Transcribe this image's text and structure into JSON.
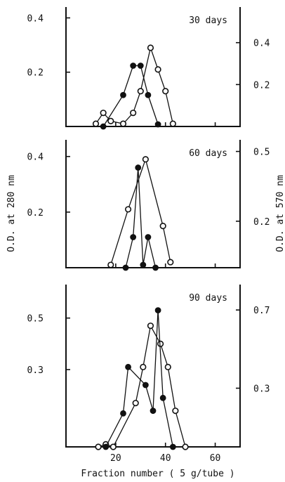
{
  "figure": {
    "left_axis_label": "O.D. at 280 nm",
    "right_axis_label": "O.D. at 570 nm",
    "x_axis_label": "Fraction number ( 5 g/tube )"
  },
  "chart_data": [
    {
      "type": "line",
      "panel_label": "30 days",
      "xlim": [
        0,
        70
      ],
      "left_axis": {
        "label": "O.D. at 280 nm",
        "ylim": [
          0,
          0.44
        ],
        "ticks": [
          0.2,
          0.4
        ]
      },
      "right_axis": {
        "label": "O.D. at 570 nm",
        "ylim": [
          0,
          0.57
        ],
        "ticks": [
          0.2,
          0.4
        ]
      },
      "series": [
        {
          "marker": "open",
          "axis": "left",
          "x": [
            12,
            15,
            18,
            23,
            27,
            30,
            34,
            37,
            40,
            43
          ],
          "y": [
            0.01,
            0.05,
            0.02,
            0.01,
            0.05,
            0.13,
            0.29,
            0.21,
            0.13,
            0.01
          ]
        },
        {
          "marker": "filled",
          "axis": "right",
          "x": [
            15,
            23,
            27,
            30,
            33,
            37
          ],
          "y": [
            0.0,
            0.15,
            0.29,
            0.29,
            0.15,
            0.01
          ]
        }
      ]
    },
    {
      "type": "line",
      "panel_label": "60 days",
      "xlim": [
        0,
        70
      ],
      "left_axis": {
        "label": "O.D. at 280 nm",
        "ylim": [
          0,
          0.46
        ],
        "ticks": [
          0.2,
          0.4
        ]
      },
      "right_axis": {
        "label": "O.D. at 570 nm",
        "ylim": [
          0,
          0.55
        ],
        "ticks": [
          0.2,
          0.5
        ]
      },
      "series": [
        {
          "marker": "open",
          "axis": "left",
          "x": [
            18,
            25,
            32,
            39,
            42
          ],
          "y": [
            0.01,
            0.21,
            0.39,
            0.15,
            0.02
          ]
        },
        {
          "marker": "filled",
          "axis": "left",
          "x": [
            24,
            27,
            29,
            31,
            33,
            36
          ],
          "y": [
            0.0,
            0.11,
            0.36,
            0.01,
            0.11,
            0.0
          ]
        }
      ]
    },
    {
      "type": "line",
      "panel_label": "90 days",
      "xlim": [
        0,
        70
      ],
      "left_axis": {
        "label": "O.D. at 280 nm",
        "ylim": [
          0,
          0.63
        ],
        "ticks": [
          0.3,
          0.5
        ]
      },
      "right_axis": {
        "label": "O.D. at 570 nm",
        "ylim": [
          0,
          0.83
        ],
        "ticks": [
          0.3,
          0.7
        ]
      },
      "series": [
        {
          "marker": "open",
          "axis": "left",
          "x": [
            13,
            16,
            19,
            28,
            31,
            34,
            38,
            41,
            44,
            48
          ],
          "y": [
            0.0,
            0.01,
            0.0,
            0.17,
            0.31,
            0.47,
            0.4,
            0.31,
            0.14,
            0.0
          ]
        },
        {
          "marker": "filled",
          "axis": "left",
          "x": [
            16,
            23,
            25,
            32,
            35,
            37,
            39,
            43
          ],
          "y": [
            0.0,
            0.13,
            0.31,
            0.24,
            0.14,
            0.53,
            0.19,
            0.0
          ]
        }
      ]
    }
  ]
}
